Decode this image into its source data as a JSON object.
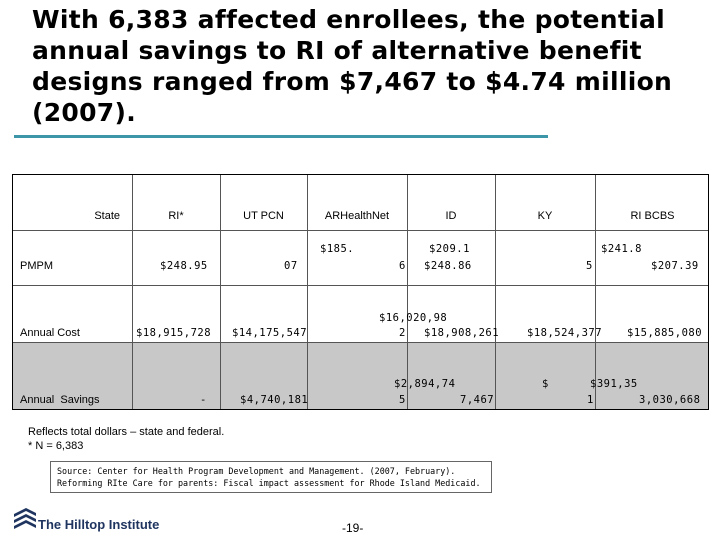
{
  "title": "With 6,383 affected enrollees, the potential annual savings to RI of alternative benefit designs ranged from $7,467 to $4.74 million (2007).",
  "table": {
    "headers": [
      "State",
      "RI*",
      "UT PCN",
      "ARHealthNet",
      "ID",
      "KY",
      "RI BCBS"
    ],
    "rows": [
      {
        "label": "PMPM",
        "ri": "$248.95",
        "ut_pcn": "07",
        "arhealthnet_a": "$185.",
        "arhealthnet_b": "6",
        "id_a": "$209.1",
        "id_b": "$248.86",
        "ky": "5",
        "ri_bcbs_a": "$241.8",
        "ri_bcbs_b": "$207.39"
      },
      {
        "label": "Annual Cost",
        "ri": "$18,915,728",
        "ut_pcn": "$14,175,547",
        "arhealthnet_a": "$16,020,98",
        "arhealthnet_b": "2",
        "id": "$18,908,261",
        "ky": "$18,524,377",
        "ri_bcbs": "$15,885,080"
      },
      {
        "label": "Annual  Savings",
        "ri": "-",
        "ut_pcn": "$4,740,181",
        "arhealthnet_a": "$2,894,74",
        "arhealthnet_b": "5",
        "id": "7,467",
        "ky_a": "$",
        "ky_b": "$391,35",
        "ky_c": "1",
        "ri_bcbs": "3,030,668"
      }
    ]
  },
  "footnotes": [
    "Reflects total dollars – state and federal.",
    "* N = 6,383"
  ],
  "source_lines": [
    "Source: Center for Health Program Development and Management. (2007, February).",
    "Reforming RIte Care for parents: Fiscal impact assessment for Rhode Island Medicaid."
  ],
  "logo_text": "The Hilltop Institute",
  "page_number": "-19-",
  "colors": {
    "accent_rule": "#3d96a7",
    "savings_row_bg": "#c8c8c8",
    "logo_blue": "#1f3560"
  }
}
